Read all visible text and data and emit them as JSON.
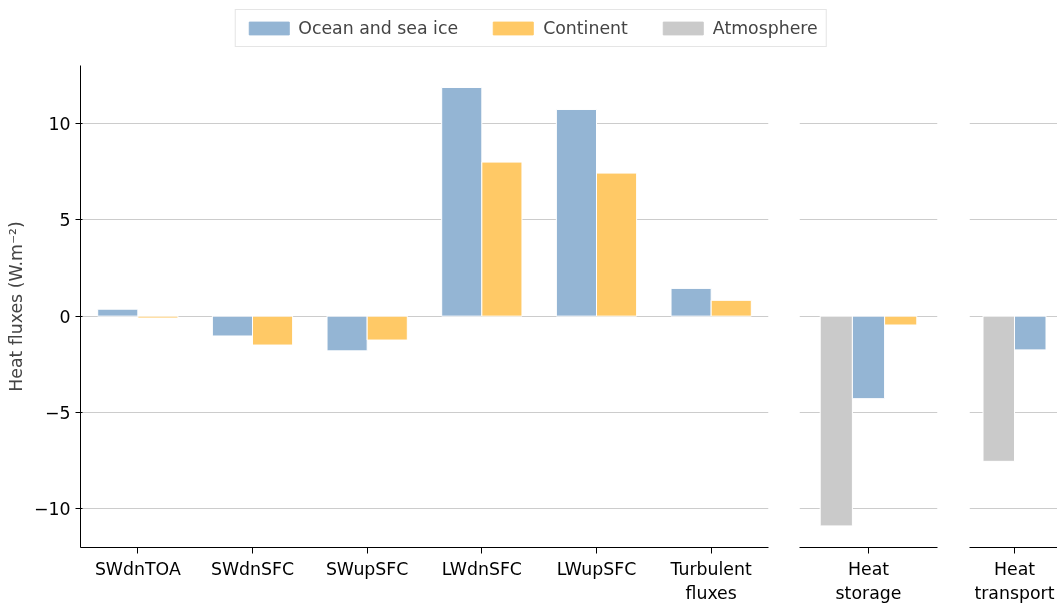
{
  "chart_data": [
    {
      "type": "bar",
      "ylabel": "Heat fluxes (W.m⁻²)",
      "categories": [
        "SWdnTOA",
        "SWdnSFC",
        "SWupSFC",
        "LWdnSFC",
        "LWupSFC",
        "Turbulent\nfluxes"
      ],
      "series": [
        {
          "name": "Ocean and sea ice",
          "color": "#94b5d4",
          "values": [
            0.36,
            -1.03,
            -1.8,
            11.86,
            10.72,
            1.44
          ]
        },
        {
          "name": "Continent",
          "color": "#ffc966",
          "values": [
            -0.1,
            -1.5,
            -1.24,
            7.99,
            7.42,
            0.82
          ]
        }
      ],
      "ylim": [
        -12,
        13
      ],
      "yticks": [
        -10,
        -5,
        0,
        5,
        10
      ],
      "grid": "y",
      "legend": "top"
    },
    {
      "type": "bar",
      "categories": [
        "Heat\nstorage"
      ],
      "series": [
        {
          "name": "Atmosphere",
          "color": "#cacaca",
          "values": [
            -10.88
          ]
        },
        {
          "color": "#94b5d4",
          "values": [
            -4.28
          ]
        },
        {
          "color": "#ffc966",
          "values": [
            -0.46
          ]
        }
      ],
      "yticks": [
        -10,
        -5,
        0,
        5,
        10
      ],
      "grid": "y",
      "tick_labels": "x",
      "legend": "top"
    },
    {
      "type": "bar",
      "categories": [
        "Heat\ntransport"
      ],
      "series": [
        {
          "color": "#cacaca",
          "values": [
            -7.53
          ]
        },
        {
          "color": "#94b5d4",
          "values": [
            -1.75
          ]
        }
      ],
      "yticks": [
        -10,
        -5,
        0,
        5,
        10
      ],
      "grid": "y",
      "tick_labels": "x"
    }
  ]
}
